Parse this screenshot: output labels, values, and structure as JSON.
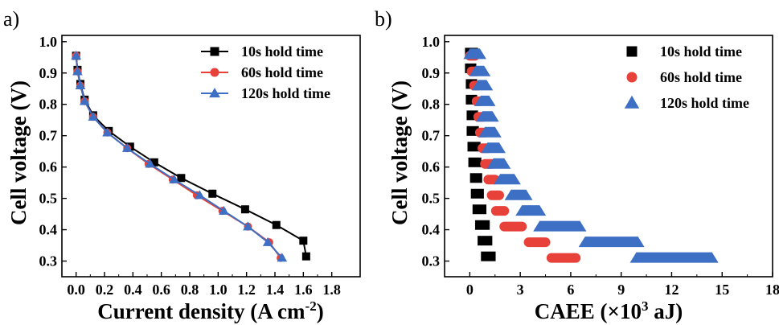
{
  "chart_data": [
    {
      "panel": "a)",
      "type": "line",
      "xlabel": "Current density (A cm",
      "xlabel_sup": "-2",
      "xlabel_end": ")",
      "ylabel": "Cell voltage (V)",
      "xlim": [
        -0.1,
        2.0
      ],
      "ylim": [
        0.25,
        1.02
      ],
      "xticks": [
        "0.0",
        "0.2",
        "0.4",
        "0.6",
        "0.8",
        "1.0",
        "1.2",
        "1.4",
        "1.6",
        "1.8"
      ],
      "xtick_values": [
        0.0,
        0.2,
        0.4,
        0.6,
        0.8,
        1.0,
        1.2,
        1.4,
        1.6,
        1.8
      ],
      "yticks": [
        "0.3",
        "0.4",
        "0.5",
        "0.6",
        "0.7",
        "0.8",
        "0.9",
        "1.0"
      ],
      "ytick_values": [
        0.3,
        0.4,
        0.5,
        0.6,
        0.7,
        0.8,
        0.9,
        1.0
      ],
      "legend_position": "top-right",
      "series": [
        {
          "name": "10s hold time",
          "color": "#000000",
          "marker": "square",
          "points": [
            [
              0.0,
              0.955
            ],
            [
              0.01,
              0.91
            ],
            [
              0.03,
              0.865
            ],
            [
              0.06,
              0.815
            ],
            [
              0.12,
              0.765
            ],
            [
              0.23,
              0.715
            ],
            [
              0.38,
              0.665
            ],
            [
              0.55,
              0.615
            ],
            [
              0.74,
              0.565
            ],
            [
              0.96,
              0.515
            ],
            [
              1.19,
              0.465
            ],
            [
              1.41,
              0.415
            ],
            [
              1.6,
              0.365
            ],
            [
              1.62,
              0.315
            ]
          ]
        },
        {
          "name": "60s hold time",
          "color": "#e8413a",
          "marker": "circle",
          "points": [
            [
              0.0,
              0.955
            ],
            [
              0.01,
              0.905
            ],
            [
              0.03,
              0.86
            ],
            [
              0.06,
              0.81
            ],
            [
              0.12,
              0.76
            ],
            [
              0.22,
              0.71
            ],
            [
              0.36,
              0.66
            ],
            [
              0.51,
              0.61
            ],
            [
              0.68,
              0.56
            ],
            [
              0.85,
              0.51
            ],
            [
              1.03,
              0.46
            ],
            [
              1.21,
              0.41
            ],
            [
              1.36,
              0.36
            ],
            [
              1.44,
              0.31
            ]
          ]
        },
        {
          "name": "120s hold time",
          "color": "#3d6fc4",
          "marker": "triangle",
          "points": [
            [
              0.0,
              0.955
            ],
            [
              0.01,
              0.905
            ],
            [
              0.03,
              0.86
            ],
            [
              0.06,
              0.81
            ],
            [
              0.12,
              0.76
            ],
            [
              0.22,
              0.71
            ],
            [
              0.36,
              0.66
            ],
            [
              0.52,
              0.61
            ],
            [
              0.69,
              0.56
            ],
            [
              0.87,
              0.51
            ],
            [
              1.04,
              0.46
            ],
            [
              1.21,
              0.41
            ],
            [
              1.35,
              0.36
            ],
            [
              1.45,
              0.31
            ]
          ]
        }
      ]
    },
    {
      "panel": "b)",
      "type": "bar",
      "orientation": "horizontal-floating",
      "xlabel": "CAEE (×10",
      "xlabel_sup": "3",
      "xlabel_end": " aJ)",
      "ylabel": "Cell voltage (V)",
      "xlim": [
        -1.5,
        18
      ],
      "ylim": [
        0.25,
        1.02
      ],
      "xticks": [
        "0",
        "3",
        "6",
        "9",
        "12",
        "15",
        "18"
      ],
      "xtick_values": [
        0,
        3,
        6,
        9,
        12,
        15,
        18
      ],
      "yticks": [
        "0.3",
        "0.4",
        "0.5",
        "0.6",
        "0.7",
        "0.8",
        "0.9",
        "1.0"
      ],
      "ytick_values": [
        0.3,
        0.4,
        0.5,
        0.6,
        0.7,
        0.8,
        0.9,
        1.0
      ],
      "legend_position": "top-right",
      "series": [
        {
          "name": "10s hold time",
          "color": "#000000",
          "marker": "square",
          "voltages": [
            0.965,
            0.915,
            0.865,
            0.815,
            0.765,
            0.715,
            0.665,
            0.615,
            0.565,
            0.515,
            0.465,
            0.415,
            0.365,
            0.315
          ],
          "ranges": [
            [
              0.0,
              0.2
            ],
            [
              0.0,
              0.1
            ],
            [
              0.05,
              0.15
            ],
            [
              0.05,
              0.15
            ],
            [
              0.1,
              0.2
            ],
            [
              0.1,
              0.25
            ],
            [
              0.15,
              0.35
            ],
            [
              0.2,
              0.4
            ],
            [
              0.3,
              0.45
            ],
            [
              0.35,
              0.55
            ],
            [
              0.45,
              0.7
            ],
            [
              0.6,
              0.9
            ],
            [
              0.75,
              1.05
            ],
            [
              0.95,
              1.25
            ]
          ]
        },
        {
          "name": "60s hold time",
          "color": "#e8413a",
          "marker": "circle",
          "voltages": [
            0.955,
            0.905,
            0.86,
            0.81,
            0.76,
            0.71,
            0.66,
            0.61,
            0.56,
            0.51,
            0.46,
            0.41,
            0.36,
            0.31
          ],
          "ranges": [
            [
              0.0,
              0.3
            ],
            [
              0.1,
              0.4
            ],
            [
              0.25,
              0.5
            ],
            [
              0.4,
              0.65
            ],
            [
              0.5,
              0.8
            ],
            [
              0.6,
              0.95
            ],
            [
              0.75,
              1.1
            ],
            [
              0.9,
              1.3
            ],
            [
              1.1,
              1.5
            ],
            [
              1.3,
              1.75
            ],
            [
              1.55,
              2.05
            ],
            [
              2.05,
              3.1
            ],
            [
              3.5,
              4.5
            ],
            [
              4.85,
              6.3
            ]
          ]
        },
        {
          "name": "120s hold time",
          "color": "#3d6fc4",
          "marker": "triangle",
          "voltages": [
            0.96,
            0.905,
            0.86,
            0.81,
            0.76,
            0.71,
            0.66,
            0.61,
            0.56,
            0.51,
            0.46,
            0.41,
            0.36,
            0.31
          ],
          "ranges": [
            [
              0.0,
              0.6
            ],
            [
              0.35,
              0.85
            ],
            [
              0.5,
              1.0
            ],
            [
              0.65,
              1.15
            ],
            [
              0.75,
              1.35
            ],
            [
              0.9,
              1.5
            ],
            [
              1.05,
              1.75
            ],
            [
              1.4,
              2.05
            ],
            [
              1.8,
              2.65
            ],
            [
              2.45,
              3.35
            ],
            [
              3.1,
              4.15
            ],
            [
              4.15,
              6.55
            ],
            [
              6.85,
              10.0
            ],
            [
              9.9,
              14.4
            ]
          ]
        }
      ]
    }
  ]
}
